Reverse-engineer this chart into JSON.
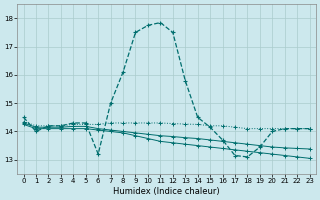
{
  "xlabel": "Humidex (Indice chaleur)",
  "x_ticks": [
    0,
    1,
    2,
    3,
    4,
    5,
    6,
    7,
    8,
    9,
    10,
    11,
    12,
    13,
    14,
    15,
    16,
    17,
    18,
    19,
    20,
    21,
    22,
    23
  ],
  "ylim": [
    12.5,
    18.5
  ],
  "xlim": [
    -0.5,
    23.5
  ],
  "yticks": [
    13,
    14,
    15,
    16,
    17,
    18
  ],
  "bg_color": "#cce8ed",
  "grid_color": "#aacccc",
  "line_color": "#006e6e",
  "curve_spike": {
    "x": [
      0,
      1,
      2,
      3,
      4,
      5,
      6,
      7,
      8,
      9,
      10,
      11,
      12,
      13,
      14,
      15,
      16,
      17,
      18,
      19,
      20,
      21,
      22,
      23
    ],
    "y": [
      14.5,
      14.0,
      14.2,
      14.2,
      14.3,
      14.3,
      13.2,
      15.0,
      16.1,
      17.5,
      17.75,
      17.85,
      17.5,
      15.8,
      14.5,
      14.15,
      13.7,
      13.15,
      13.1,
      13.45,
      14.0,
      14.1,
      14.1,
      14.1
    ]
  },
  "curve_flat1": {
    "x": [
      0,
      1,
      2,
      3,
      4,
      5,
      6,
      7,
      8,
      9,
      10,
      11,
      12,
      13,
      14,
      15,
      16,
      17,
      18,
      19,
      20,
      21,
      22,
      23
    ],
    "y": [
      14.35,
      14.2,
      14.2,
      14.2,
      14.25,
      14.25,
      14.25,
      14.3,
      14.3,
      14.3,
      14.3,
      14.3,
      14.28,
      14.26,
      14.25,
      14.2,
      14.2,
      14.15,
      14.1,
      14.1,
      14.1,
      14.1,
      14.1,
      14.1
    ]
  },
  "curve_flat2": {
    "x": [
      0,
      1,
      2,
      3,
      4,
      5,
      6,
      7,
      8,
      9,
      10,
      11,
      12,
      13,
      14,
      15,
      16,
      17,
      18,
      19,
      20,
      21,
      22,
      23
    ],
    "y": [
      14.3,
      14.15,
      14.15,
      14.15,
      14.18,
      14.18,
      14.1,
      14.05,
      14.0,
      13.95,
      13.9,
      13.85,
      13.82,
      13.78,
      13.75,
      13.7,
      13.65,
      13.6,
      13.55,
      13.5,
      13.45,
      13.42,
      13.4,
      13.38
    ]
  },
  "curve_decline": {
    "x": [
      0,
      1,
      2,
      3,
      4,
      5,
      6,
      7,
      8,
      9,
      10,
      11,
      12,
      13,
      14,
      15,
      16,
      17,
      18,
      19,
      20,
      21,
      22,
      23
    ],
    "y": [
      14.25,
      14.1,
      14.1,
      14.1,
      14.1,
      14.1,
      14.05,
      14.0,
      13.95,
      13.85,
      13.75,
      13.65,
      13.6,
      13.55,
      13.5,
      13.45,
      13.4,
      13.35,
      13.3,
      13.25,
      13.2,
      13.15,
      13.1,
      13.05
    ]
  }
}
